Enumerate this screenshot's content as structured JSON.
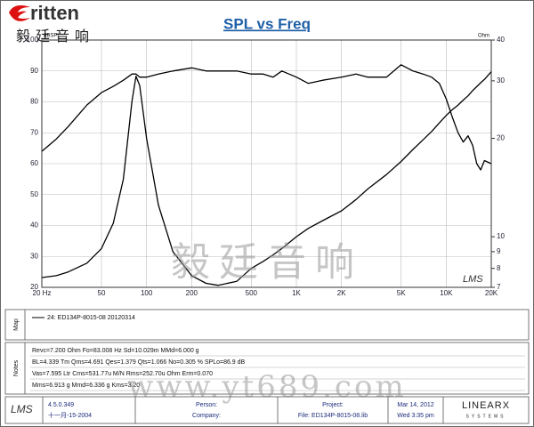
{
  "header": {
    "logo": "ritten",
    "logo_cn": "毅廷音响"
  },
  "chart_data": {
    "type": "line",
    "title": "SPL vs Freq",
    "y_label": "dBSPL",
    "y2_label": "Ohm",
    "x": [
      20,
      25,
      30,
      40,
      50,
      60,
      70,
      80,
      85,
      90,
      100,
      120,
      150,
      200,
      250,
      300,
      400,
      500,
      600,
      700,
      800,
      1000,
      1200,
      1500,
      2000,
      2500,
      3000,
      4000,
      5000,
      6000,
      7000,
      8000,
      9000,
      10000,
      11000,
      12000,
      13000,
      14000,
      15000,
      16000,
      17000,
      18000,
      20000
    ],
    "series": [
      {
        "name": "24: ED134P-8015-08 20120314",
        "color": "#000000",
        "values": [
          64,
          68,
          72,
          79,
          83,
          85,
          87,
          89,
          89,
          88,
          88,
          89,
          90,
          91,
          90,
          90,
          90,
          89,
          89,
          88,
          90,
          88,
          86,
          87,
          88,
          89,
          88,
          88,
          92,
          90,
          89,
          88,
          86,
          81,
          75,
          70,
          67,
          69,
          66,
          60,
          58,
          61,
          60
        ]
      },
      {
        "color": "#000000",
        "axis": "y2",
        "values": [
          7.5,
          7.6,
          7.8,
          8.3,
          9.2,
          11,
          15,
          26,
          31,
          29,
          20,
          12.5,
          9,
          7.6,
          7.2,
          7.1,
          7.3,
          8,
          8.4,
          8.8,
          9.2,
          10,
          10.6,
          11.2,
          12,
          13,
          14,
          15.5,
          17,
          18.5,
          19.8,
          21,
          22.3,
          23.5,
          24.5,
          25.3,
          26.2,
          27,
          28,
          28.8,
          29.6,
          30.3,
          32
        ]
      }
    ],
    "xlim": [
      20,
      20000
    ],
    "xlog": true,
    "xticks": [
      {
        "value": 20,
        "label": "20 Hz"
      },
      50,
      100,
      200,
      500,
      {
        "value": 1000,
        "label": "1K"
      },
      {
        "value": 2000,
        "label": "2K"
      },
      {
        "value": 5000,
        "label": "5K"
      },
      {
        "value": 10000,
        "label": "10K"
      },
      {
        "value": 20000,
        "label": "20K"
      }
    ],
    "ylim": [
      20,
      100
    ],
    "yticks": [
      20,
      30,
      40,
      50,
      60,
      70,
      80,
      90,
      100
    ],
    "y2lim": [
      7,
      40
    ],
    "y2log": true,
    "y2ticks": [
      7,
      8,
      9,
      10,
      20,
      30,
      40
    ],
    "grid": true,
    "corner_logo": "LMS"
  },
  "map": {
    "label": "Map"
  },
  "notes": {
    "label": "Notes",
    "lines": [
      "Revc=7.200 Ohm  Fo=83.008 Hz  Sd=10.029m  MMd=6.000 g",
      "BL=4.339 Tm  Qms=4.691  Qes=1.379  Qts=1.066  No=0.305 %  SPLo=86.9 dB",
      "Vas=7.595 Ltr  Cms=531.77u M/N  Rms=252.70u Ohm  Erm=0.070",
      "Mms=6.913 g  Mmd=6.336 g  Kms=3.20"
    ]
  },
  "footer": {
    "logo": "LMS",
    "version": "4.5.0.349",
    "date_build": "十一月-15-2004",
    "person": "Person:",
    "company": "Company:",
    "project": "Project:",
    "file": "File: ED134P-8015-08.lib",
    "date": "Mar 14, 2012",
    "time": "Wed  3:35 pm",
    "brand": "LINEARX",
    "brand_sub": "SYSTEMS"
  },
  "watermark": {
    "cn": "毅廷音响",
    "url": "www.yt689.com"
  }
}
